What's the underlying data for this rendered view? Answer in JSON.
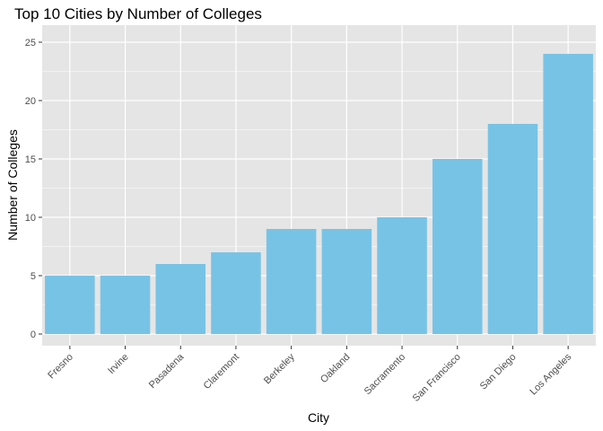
{
  "chart_data": {
    "type": "bar",
    "title": "Top 10 Cities by Number of Colleges",
    "xlabel": "City",
    "ylabel": "Number of Colleges",
    "categories": [
      "Fresno",
      "Irvine",
      "Pasadena",
      "Claremont",
      "Berkeley",
      "Oakland",
      "Sacramento",
      "San Francisco",
      "San Diego",
      "Los Angeles"
    ],
    "values": [
      5,
      5,
      6,
      7,
      9,
      9,
      10,
      15,
      18,
      24
    ],
    "ylim": [
      0,
      25
    ],
    "yticks": [
      "0",
      "5",
      "10",
      "15",
      "20",
      "25"
    ],
    "grid": true,
    "bar_color": "#77c3e6",
    "panel_color": "#e5e5e5",
    "grid_color": "#ffffff"
  }
}
